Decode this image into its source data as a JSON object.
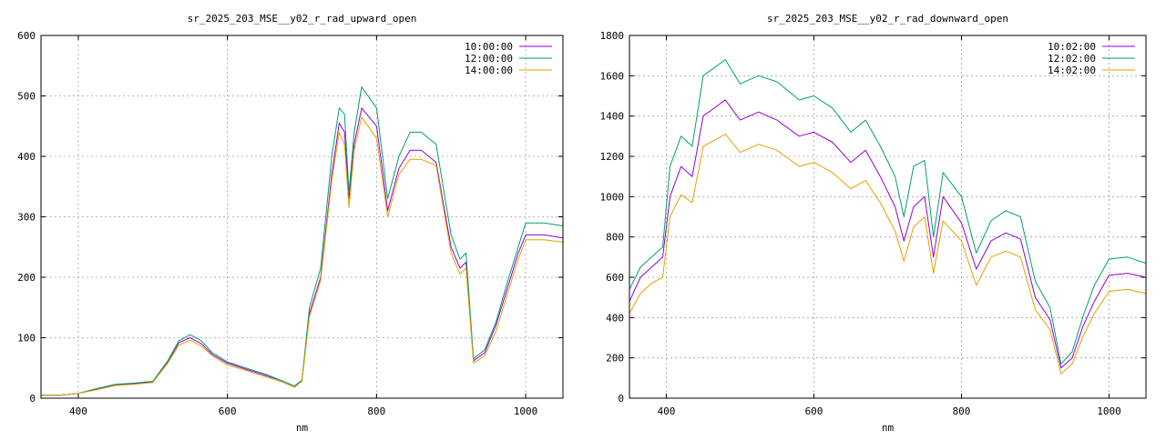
{
  "chart_data": [
    {
      "type": "line",
      "title": "sr_2025_203_MSE__y02_r_rad_upward_open",
      "xlabel": "nm",
      "ylabel": "",
      "xlim": [
        350,
        1050
      ],
      "ylim": [
        0,
        600
      ],
      "xticks": [
        400,
        600,
        800,
        1000
      ],
      "yticks": [
        0,
        100,
        200,
        300,
        400,
        500,
        600
      ],
      "grid": true,
      "legend_position": "top-right",
      "x": [
        350,
        375,
        400,
        425,
        450,
        475,
        500,
        520,
        535,
        550,
        565,
        580,
        600,
        625,
        650,
        675,
        690,
        700,
        710,
        725,
        740,
        750,
        757,
        763,
        770,
        780,
        800,
        815,
        830,
        845,
        860,
        880,
        900,
        912,
        920,
        930,
        945,
        960,
        975,
        990,
        1000,
        1025,
        1050
      ],
      "series": [
        {
          "name": "10:00:00",
          "color": "#9400d3",
          "values": [
            5,
            5,
            8,
            15,
            22,
            24,
            27,
            60,
            92,
            100,
            90,
            72,
            58,
            48,
            38,
            28,
            20,
            30,
            140,
            200,
            370,
            455,
            440,
            330,
            420,
            480,
            450,
            310,
            380,
            410,
            410,
            390,
            250,
            215,
            225,
            62,
            75,
            120,
            180,
            240,
            270,
            270,
            265
          ]
        },
        {
          "name": "12:00:00",
          "color": "#009e73",
          "values": [
            5,
            5,
            8,
            16,
            23,
            25,
            28,
            62,
            95,
            105,
            95,
            75,
            60,
            50,
            40,
            28,
            20,
            30,
            150,
            215,
            400,
            480,
            470,
            340,
            440,
            515,
            480,
            330,
            400,
            440,
            440,
            420,
            270,
            230,
            240,
            65,
            80,
            125,
            190,
            250,
            290,
            290,
            285
          ]
        },
        {
          "name": "14:00:00",
          "color": "#e69f00",
          "values": [
            5,
            5,
            8,
            14,
            21,
            23,
            26,
            58,
            88,
            96,
            86,
            70,
            55,
            46,
            36,
            26,
            18,
            28,
            135,
            195,
            360,
            440,
            420,
            315,
            410,
            465,
            430,
            300,
            370,
            395,
            395,
            385,
            240,
            205,
            215,
            58,
            70,
            110,
            170,
            230,
            262,
            262,
            258
          ]
        }
      ]
    },
    {
      "type": "line",
      "title": "sr_2025_203_MSE__y02_r_rad_downward_open",
      "xlabel": "nm",
      "ylabel": "",
      "xlim": [
        350,
        1050
      ],
      "ylim": [
        0,
        1800
      ],
      "xticks": [
        400,
        600,
        800,
        1000
      ],
      "yticks": [
        0,
        200,
        400,
        600,
        800,
        1000,
        1200,
        1400,
        1600,
        1800
      ],
      "grid": true,
      "legend_position": "top-right",
      "x": [
        350,
        365,
        380,
        395,
        405,
        420,
        435,
        450,
        480,
        500,
        525,
        550,
        580,
        600,
        625,
        650,
        670,
        690,
        710,
        722,
        735,
        750,
        762,
        775,
        800,
        820,
        840,
        860,
        880,
        900,
        920,
        935,
        950,
        965,
        980,
        1000,
        1025,
        1050
      ],
      "series": [
        {
          "name": "10:02:00",
          "color": "#9400d3",
          "values": [
            480,
            600,
            650,
            700,
            1000,
            1150,
            1100,
            1400,
            1480,
            1380,
            1420,
            1380,
            1300,
            1320,
            1270,
            1170,
            1230,
            1100,
            950,
            780,
            950,
            1000,
            700,
            1000,
            870,
            640,
            780,
            820,
            790,
            500,
            390,
            150,
            200,
            360,
            480,
            610,
            620,
            600
          ]
        },
        {
          "name": "12:02:00",
          "color": "#009e73",
          "values": [
            540,
            650,
            700,
            750,
            1150,
            1300,
            1250,
            1600,
            1680,
            1560,
            1600,
            1570,
            1480,
            1500,
            1440,
            1320,
            1380,
            1250,
            1100,
            900,
            1150,
            1180,
            800,
            1120,
            1000,
            720,
            880,
            930,
            900,
            580,
            450,
            170,
            230,
            410,
            560,
            690,
            700,
            670
          ]
        },
        {
          "name": "14:02:00",
          "color": "#e69f00",
          "values": [
            420,
            520,
            570,
            600,
            900,
            1010,
            970,
            1250,
            1310,
            1220,
            1260,
            1230,
            1150,
            1170,
            1120,
            1040,
            1080,
            970,
            830,
            680,
            850,
            900,
            620,
            880,
            780,
            560,
            700,
            730,
            700,
            440,
            340,
            120,
            170,
            310,
            420,
            530,
            540,
            520
          ]
        }
      ]
    }
  ]
}
